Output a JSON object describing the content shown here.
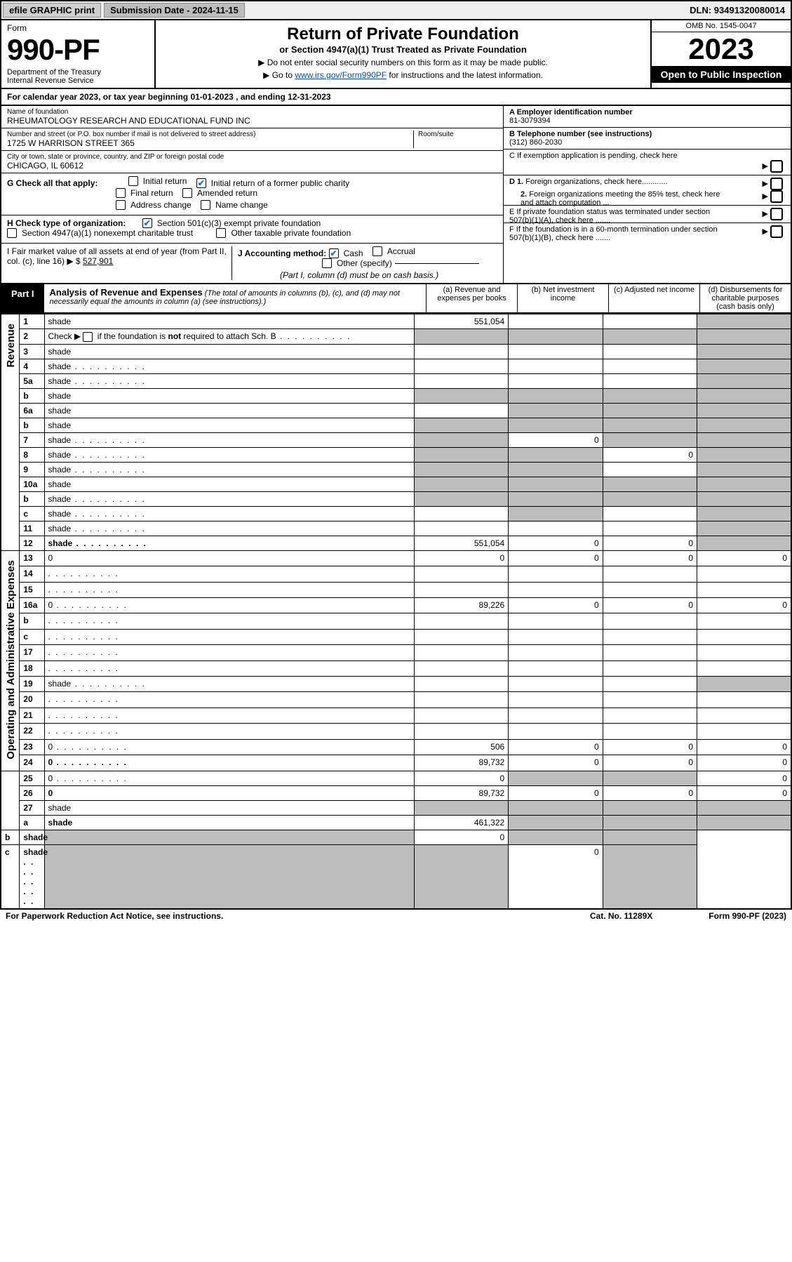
{
  "topbar": {
    "efile": "efile GRAPHIC print",
    "submission": "Submission Date - 2024-11-15",
    "dln": "DLN: 93491320080014"
  },
  "header": {
    "form": "Form",
    "formno": "990-PF",
    "dept": "Department of the Treasury\nInternal Revenue Service",
    "title": "Return of Private Foundation",
    "subtitle": "or Section 4947(a)(1) Trust Treated as Private Foundation",
    "note1": "▶ Do not enter social security numbers on this form as it may be made public.",
    "note2": "▶ Go to www.irs.gov/Form990PF for instructions and the latest information.",
    "omb": "OMB No. 1545-0047",
    "year": "2023",
    "open": "Open to Public Inspection"
  },
  "calyear": "For calendar year 2023, or tax year beginning 01-01-2023              , and ending 12-31-2023",
  "name": {
    "label": "Name of foundation",
    "val": "RHEUMATOLOGY RESEARCH AND EDUCATIONAL FUND INC"
  },
  "addr": {
    "label": "Number and street (or P.O. box number if mail is not delivered to street address)",
    "val": "1725 W HARRISON STREET 365",
    "room_label": "Room/suite"
  },
  "city": {
    "label": "City or town, state or province, country, and ZIP or foreign postal code",
    "val": "CHICAGO, IL  60612"
  },
  "ein": {
    "label": "A Employer identification number",
    "val": "81-3079394"
  },
  "phone": {
    "label": "B Telephone number (see instructions)",
    "val": "(312) 860-2030"
  },
  "c": "C If exemption application is pending, check here",
  "d1": "D 1. Foreign organizations, check here............",
  "d2": "2. Foreign organizations meeting the 85% test, check here and attach computation ...",
  "e": "E  If private foundation status was terminated under section 507(b)(1)(A), check here .......",
  "f": "F  If the foundation is in a 60-month termination under section 507(b)(1)(B), check here .......",
  "g": {
    "label": "G Check all that apply:",
    "opts": [
      "Initial return",
      "Initial return of a former public charity",
      "Final return",
      "Amended return",
      "Address change",
      "Name change"
    ]
  },
  "h": {
    "label": "H Check type of organization:",
    "opt1": "Section 501(c)(3) exempt private foundation",
    "opt2": "Section 4947(a)(1) nonexempt charitable trust",
    "opt3": "Other taxable private foundation"
  },
  "i": {
    "label": "I Fair market value of all assets at end of year (from Part II, col. (c), line 16) ▶ $",
    "val": "527,901"
  },
  "j": {
    "label": "J Accounting method:",
    "opts": [
      "Cash",
      "Accrual",
      "Other (specify)"
    ],
    "note": "(Part I, column (d) must be on cash basis.)"
  },
  "part1": {
    "tag": "Part I",
    "title": "Analysis of Revenue and Expenses",
    "desc": "(The total of amounts in columns (b), (c), and (d) may not necessarily equal the amounts in column (a) (see instructions).)",
    "cols": {
      "a": "(a)   Revenue and expenses per books",
      "b": "(b)   Net investment income",
      "c": "(c)   Adjusted net income",
      "d": "(d)   Disbursements for charitable purposes (cash basis only)"
    }
  },
  "sides": {
    "rev": "Revenue",
    "exp": "Operating and Administrative Expenses"
  },
  "rows": [
    {
      "n": "1",
      "d": "shade",
      "a": "551,054",
      "b": "",
      "c": ""
    },
    {
      "n": "2",
      "d": "shade",
      "a": "shade",
      "b": "shade",
      "c": "shade",
      "dots": true
    },
    {
      "n": "3",
      "d": "shade",
      "a": "",
      "b": "",
      "c": ""
    },
    {
      "n": "4",
      "d": "shade",
      "a": "",
      "b": "",
      "c": "",
      "dots": true
    },
    {
      "n": "5a",
      "d": "shade",
      "a": "",
      "b": "",
      "c": "",
      "dots": true
    },
    {
      "n": "b",
      "d": "shade",
      "a": "shade",
      "b": "shade",
      "c": "shade"
    },
    {
      "n": "6a",
      "d": "shade",
      "a": "",
      "b": "shade",
      "c": "shade"
    },
    {
      "n": "b",
      "d": "shade",
      "a": "shade",
      "b": "shade",
      "c": "shade"
    },
    {
      "n": "7",
      "d": "shade",
      "a": "shade",
      "b": "0",
      "c": "shade",
      "dots": true
    },
    {
      "n": "8",
      "d": "shade",
      "a": "shade",
      "b": "shade",
      "c": "0",
      "dots": true
    },
    {
      "n": "9",
      "d": "shade",
      "a": "shade",
      "b": "shade",
      "c": "",
      "dots": true
    },
    {
      "n": "10a",
      "d": "shade",
      "a": "shade",
      "b": "shade",
      "c": "shade"
    },
    {
      "n": "b",
      "d": "shade",
      "a": "shade",
      "b": "shade",
      "c": "shade",
      "dots": true
    },
    {
      "n": "c",
      "d": "shade",
      "a": "",
      "b": "shade",
      "c": "",
      "dots": true
    },
    {
      "n": "11",
      "d": "shade",
      "a": "",
      "b": "",
      "c": "",
      "dots": true
    },
    {
      "n": "12",
      "d": "shade",
      "a": "551,054",
      "b": "0",
      "c": "0",
      "bold": true,
      "dots": true
    },
    {
      "n": "13",
      "d": "0",
      "a": "0",
      "b": "0",
      "c": "0"
    },
    {
      "n": "14",
      "d": "",
      "a": "",
      "b": "",
      "c": "",
      "dots": true
    },
    {
      "n": "15",
      "d": "",
      "a": "",
      "b": "",
      "c": "",
      "dots": true
    },
    {
      "n": "16a",
      "d": "0",
      "a": "89,226",
      "b": "0",
      "c": "0",
      "dots": true
    },
    {
      "n": "b",
      "d": "",
      "a": "",
      "b": "",
      "c": "",
      "dots": true
    },
    {
      "n": "c",
      "d": "",
      "a": "",
      "b": "",
      "c": "",
      "dots": true
    },
    {
      "n": "17",
      "d": "",
      "a": "",
      "b": "",
      "c": "",
      "dots": true
    },
    {
      "n": "18",
      "d": "",
      "a": "",
      "b": "",
      "c": "",
      "dots": true
    },
    {
      "n": "19",
      "d": "shade",
      "a": "",
      "b": "",
      "c": "",
      "dots": true
    },
    {
      "n": "20",
      "d": "",
      "a": "",
      "b": "",
      "c": "",
      "dots": true
    },
    {
      "n": "21",
      "d": "",
      "a": "",
      "b": "",
      "c": "",
      "dots": true
    },
    {
      "n": "22",
      "d": "",
      "a": "",
      "b": "",
      "c": "",
      "dots": true
    },
    {
      "n": "23",
      "d": "0",
      "a": "506",
      "b": "0",
      "c": "0",
      "dots": true
    },
    {
      "n": "24",
      "d": "0",
      "a": "89,732",
      "b": "0",
      "c": "0",
      "bold": true,
      "dots": true
    },
    {
      "n": "25",
      "d": "0",
      "a": "0",
      "b": "shade",
      "c": "shade",
      "dots": true
    },
    {
      "n": "26",
      "d": "0",
      "a": "89,732",
      "b": "0",
      "c": "0",
      "bold": true
    },
    {
      "n": "27",
      "d": "shade",
      "a": "shade",
      "b": "shade",
      "c": "shade"
    },
    {
      "n": "a",
      "d": "shade",
      "a": "461,322",
      "b": "shade",
      "c": "shade",
      "bold": true
    },
    {
      "n": "b",
      "d": "shade",
      "a": "shade",
      "b": "0",
      "c": "shade",
      "bold": true
    },
    {
      "n": "c",
      "d": "shade",
      "a": "shade",
      "b": "shade",
      "c": "0",
      "bold": true,
      "dots": true
    }
  ],
  "footer": {
    "l": "For Paperwork Reduction Act Notice, see instructions.",
    "m": "Cat. No. 11289X",
    "r": "Form 990-PF (2023)"
  }
}
